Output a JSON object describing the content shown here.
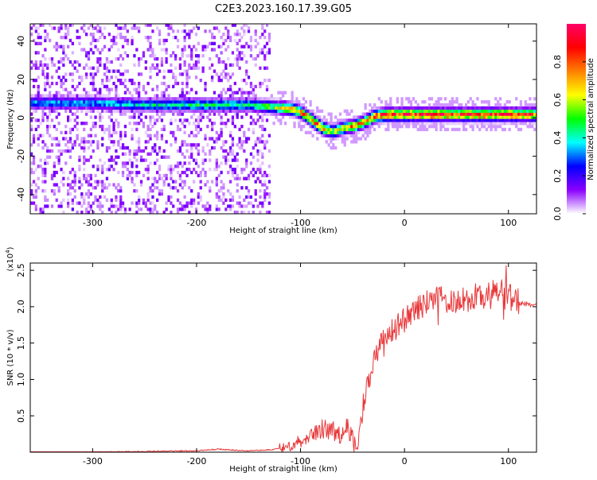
{
  "title": "C2E3.2023.160.17.39.G05",
  "chart_data": [
    {
      "type": "heatmap",
      "xlabel": "Height of straight line (km)",
      "ylabel": "Frequency (Hz)",
      "xlim": [
        -360,
        127
      ],
      "ylim": [
        -50,
        49
      ],
      "xticks": [
        "-300",
        "-200",
        "-100",
        "0",
        "100"
      ],
      "yticks": [
        "-40",
        "-20",
        "0",
        "20",
        "40"
      ],
      "colorbar": {
        "label": "Normalized spectral amplitude",
        "range": [
          0,
          1
        ],
        "ticks": [
          "0.0",
          "0.2",
          "0.4",
          "0.6",
          "0.8"
        ],
        "colors": [
          "#ffffff",
          "#8b00ff",
          "#0000ff",
          "#00ffff",
          "#00ff00",
          "#ffff00",
          "#ff8000",
          "#ff0000",
          "#ff0066"
        ]
      },
      "ridge": {
        "x": [
          -350,
          -300,
          -250,
          -200,
          -150,
          -130,
          -110,
          -100,
          -90,
          -80,
          -70,
          -60,
          -50,
          -40,
          -30,
          -20,
          0,
          50,
          100,
          127
        ],
        "frequency": [
          7,
          7,
          6,
          6,
          6,
          5,
          4,
          2,
          -2,
          -6,
          -8,
          -6,
          -5,
          -3,
          0,
          1,
          1,
          1,
          1,
          1
        ],
        "amplitude": [
          0.35,
          0.35,
          0.4,
          0.45,
          0.45,
          0.55,
          0.7,
          0.75,
          0.8,
          0.8,
          0.6,
          0.65,
          0.75,
          0.75,
          0.85,
          0.9,
          0.9,
          0.9,
          0.9,
          0.85
        ]
      },
      "noise_region_x": [
        -360,
        -130
      ]
    },
    {
      "type": "line",
      "xlabel": "Height of straight line (km)",
      "ylabel": "SNR (10 * v/v)",
      "y_scale_label": "(x10",
      "y_scale_exp": "4",
      "xlim": [
        -360,
        127
      ],
      "ylim": [
        0,
        2.6
      ],
      "xticks": [
        "-300",
        "-200",
        "-100",
        "0",
        "100"
      ],
      "yticks": [
        "0.5",
        "1.0",
        "1.5",
        "2.0",
        "2.5"
      ],
      "color": "#e8383a",
      "series": [
        {
          "x": [
            -360,
            -300,
            -250,
            -200,
            -180,
            -150,
            -130,
            -120,
            -110,
            -100,
            -90,
            -80,
            -70,
            -60,
            -55,
            -50,
            -45,
            -40,
            -35,
            -30,
            -25,
            -20,
            -10,
            0,
            10,
            20,
            30,
            40,
            60,
            80,
            90,
            100,
            110,
            120,
            127
          ],
          "values": [
            0.0,
            0.0,
            0.01,
            0.02,
            0.04,
            0.02,
            0.03,
            0.05,
            0.1,
            0.15,
            0.25,
            0.33,
            0.3,
            0.22,
            0.35,
            0.2,
            0.1,
            0.6,
            0.95,
            1.25,
            1.45,
            1.55,
            1.7,
            1.82,
            1.95,
            2.05,
            2.1,
            2.1,
            2.1,
            2.15,
            2.2,
            2.15,
            2.05,
            2.03,
            2.02
          ]
        }
      ]
    }
  ]
}
